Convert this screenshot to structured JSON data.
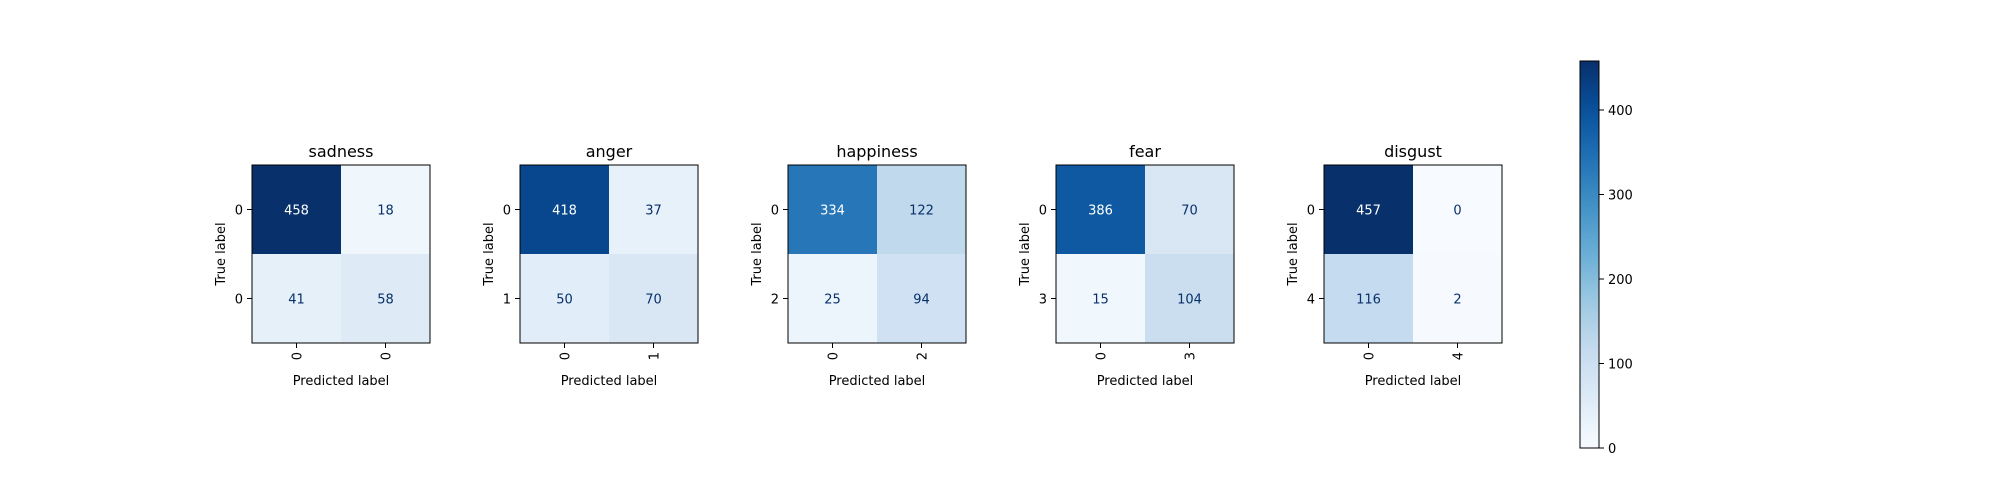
{
  "chart_data": [
    {
      "type": "heatmap",
      "title": "sadness",
      "xlabel": "Predicted label",
      "ylabel": "True label",
      "x_ticks": [
        "0",
        "0"
      ],
      "y_ticks": [
        "0",
        "0"
      ],
      "values": [
        [
          458,
          18
        ],
        [
          41,
          58
        ]
      ]
    },
    {
      "type": "heatmap",
      "title": "anger",
      "xlabel": "Predicted label",
      "ylabel": "True label",
      "x_ticks": [
        "0",
        "1"
      ],
      "y_ticks": [
        "0",
        "1"
      ],
      "values": [
        [
          418,
          37
        ],
        [
          50,
          70
        ]
      ]
    },
    {
      "type": "heatmap",
      "title": "happiness",
      "xlabel": "Predicted label",
      "ylabel": "True label",
      "x_ticks": [
        "0",
        "2"
      ],
      "y_ticks": [
        "0",
        "2"
      ],
      "values": [
        [
          334,
          122
        ],
        [
          25,
          94
        ]
      ]
    },
    {
      "type": "heatmap",
      "title": "fear",
      "xlabel": "Predicted label",
      "ylabel": "True label",
      "x_ticks": [
        "0",
        "3"
      ],
      "y_ticks": [
        "0",
        "3"
      ],
      "values": [
        [
          386,
          70
        ],
        [
          15,
          104
        ]
      ]
    },
    {
      "type": "heatmap",
      "title": "disgust",
      "xlabel": "Predicted label",
      "ylabel": "True label",
      "x_ticks": [
        "0",
        "4"
      ],
      "y_ticks": [
        "0",
        "4"
      ],
      "values": [
        [
          457,
          0
        ],
        [
          116,
          2
        ]
      ]
    }
  ],
  "colorbar": {
    "colormap": "Blues",
    "range": [
      0,
      458
    ],
    "ticks": [
      0,
      100,
      200,
      300,
      400
    ]
  },
  "colors": {
    "light_end": "#f7fbff",
    "dark_end": "#08306b",
    "dark_text": "#08306b",
    "light_text": "#ffffff"
  }
}
